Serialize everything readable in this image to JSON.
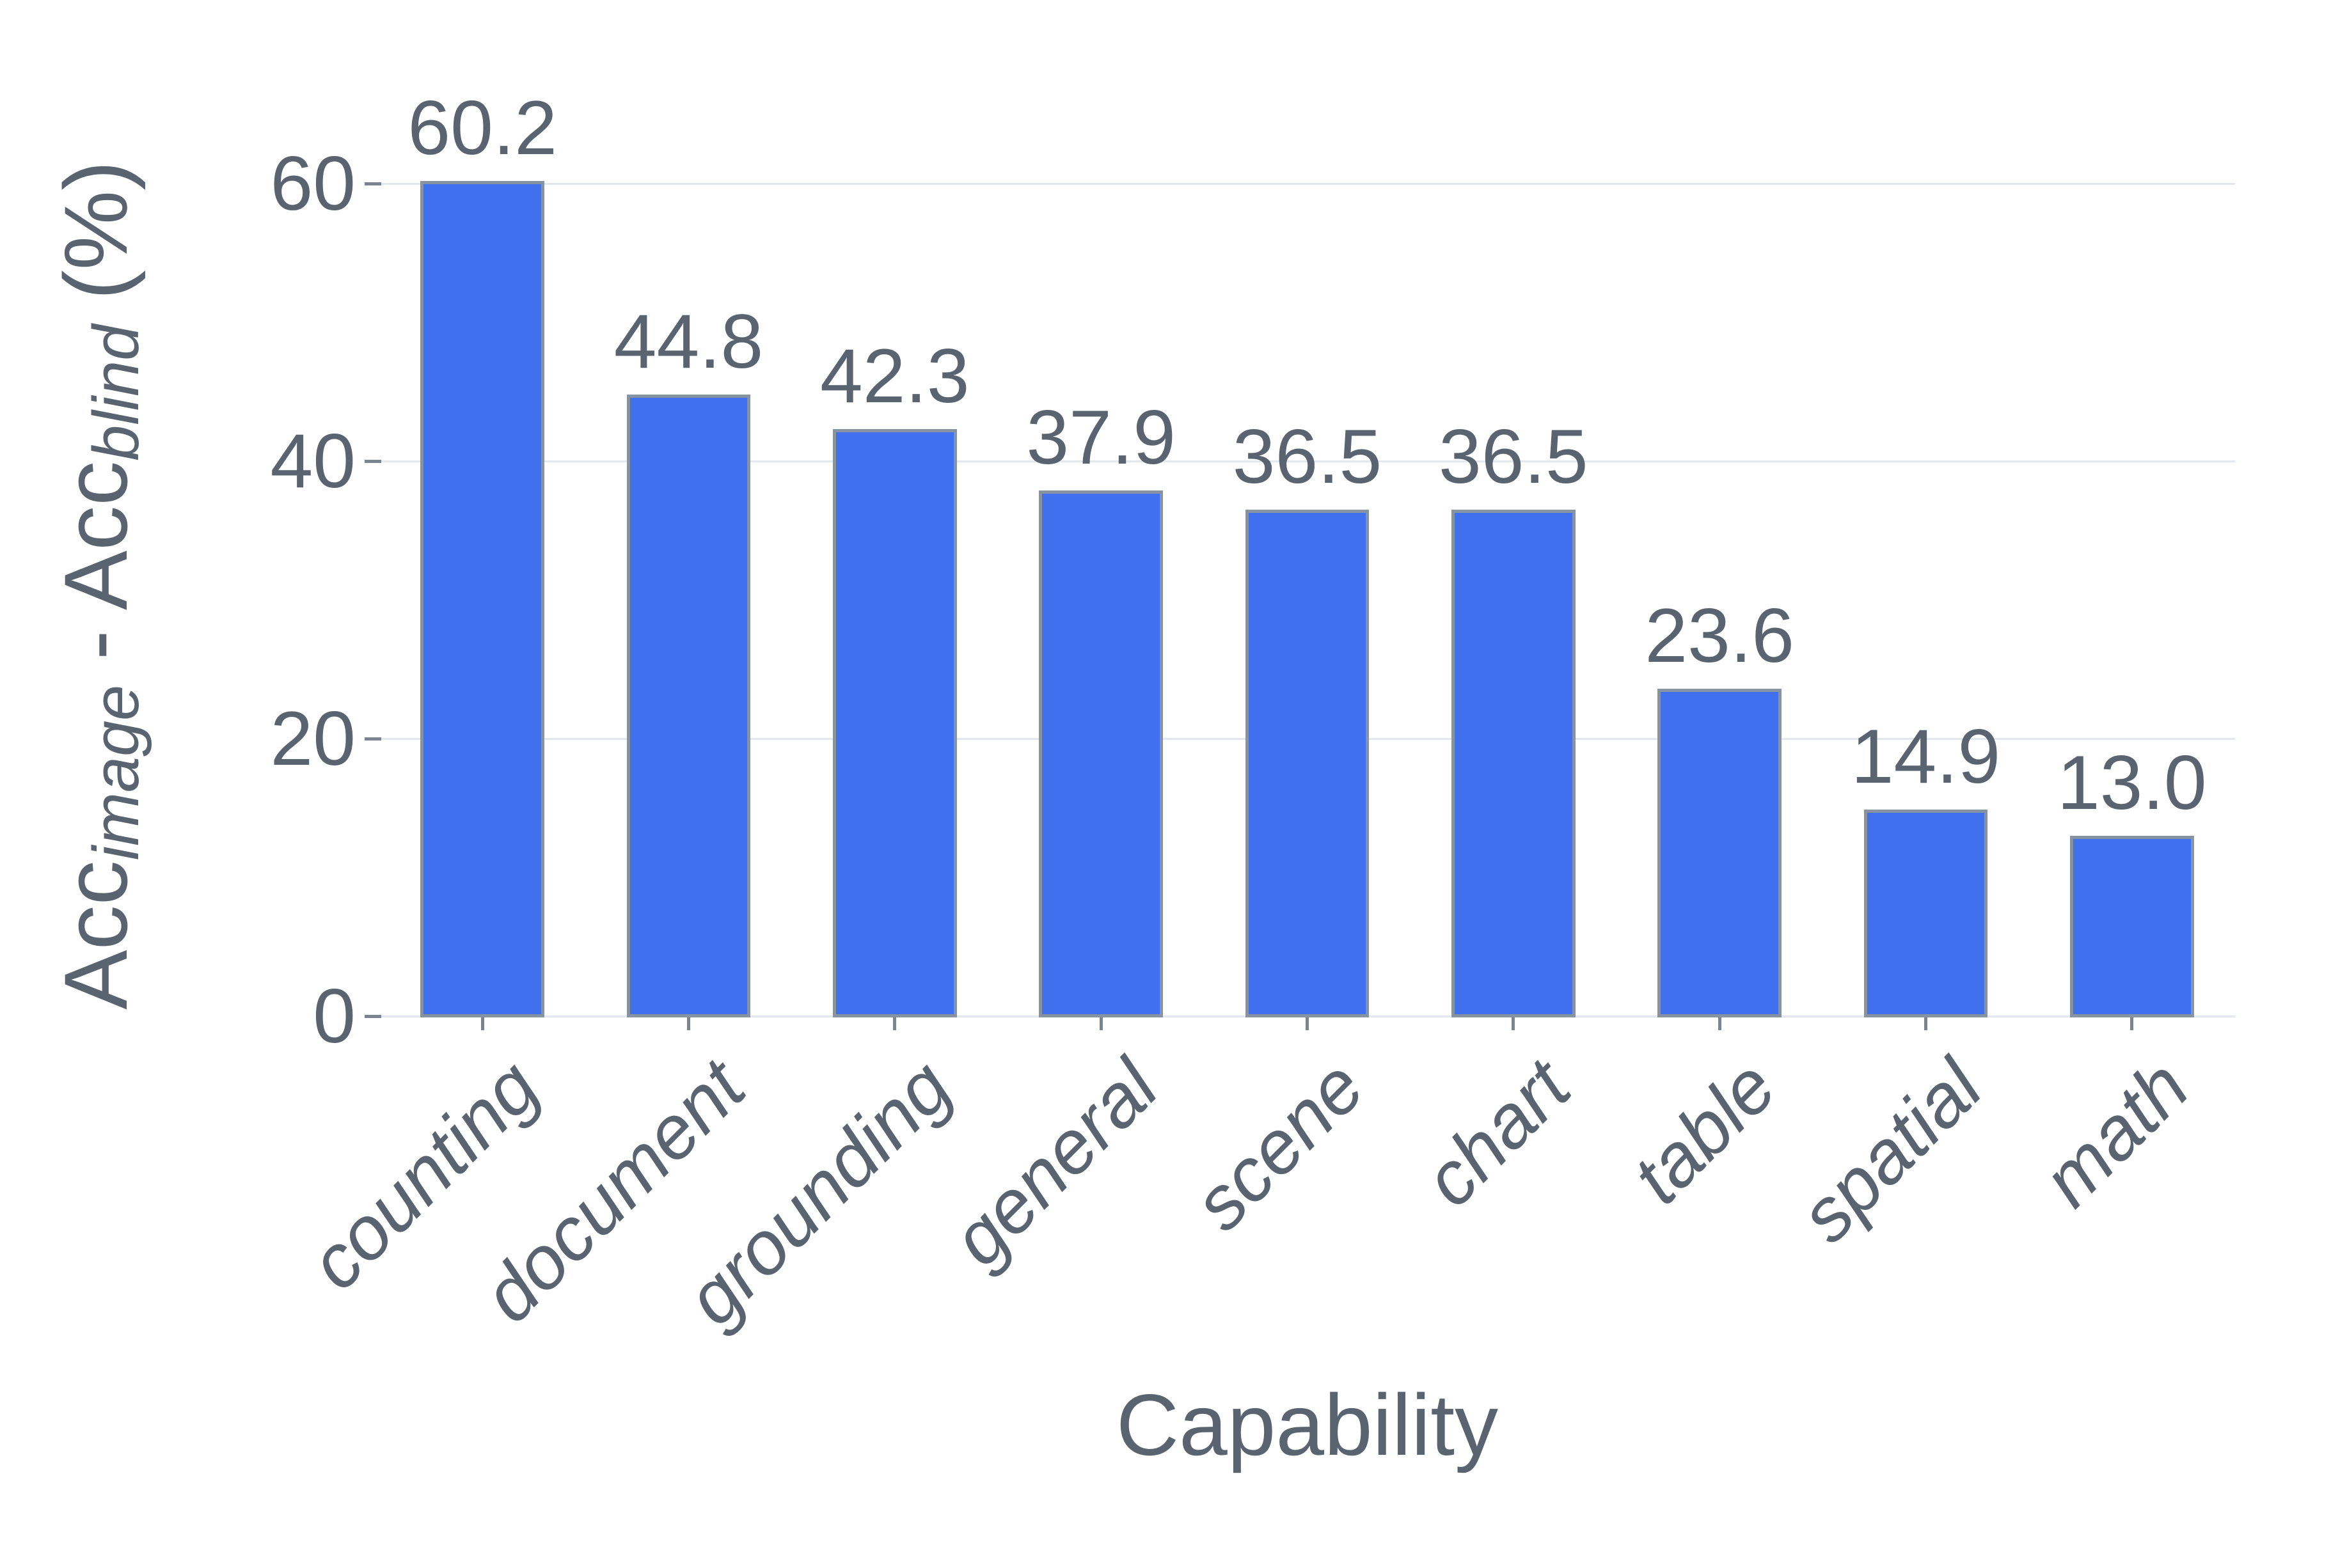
{
  "chart_data": {
    "type": "bar",
    "title": "",
    "xlabel": "Capability",
    "ylabel": "Acc_image - Acc_blind (%)",
    "ylabel_parts": {
      "acc1": "Acc",
      "sub1": "image",
      "separator": " - ",
      "acc2": "Acc",
      "sub2": "blind",
      "suffix": " (%)"
    },
    "categories": [
      "counting",
      "document",
      "grounding",
      "general",
      "scene",
      "chart",
      "table",
      "spatial",
      "math"
    ],
    "values": [
      60.2,
      44.8,
      42.3,
      37.9,
      36.5,
      36.5,
      23.6,
      14.9,
      13.0
    ],
    "value_labels": [
      "60.2",
      "44.8",
      "42.3",
      "37.9",
      "36.5",
      "36.5",
      "23.6",
      "14.9",
      "13.0"
    ],
    "yticks": [
      0,
      20,
      40,
      60
    ],
    "ytick_labels": [
      "0",
      "20",
      "40",
      "60"
    ],
    "ylim": [
      0,
      66
    ],
    "grid": true,
    "legend_position": "none",
    "x_tick_label_rotation_deg": 45,
    "x_tick_label_style": "italic",
    "colors": {
      "bar_fill": "#4070EE",
      "bar_edge": "#8793A0",
      "text": "#5A6470",
      "gridline": "#E3E8EF",
      "tick_mark": "#7B8591",
      "background": "#FFFFFF"
    }
  }
}
